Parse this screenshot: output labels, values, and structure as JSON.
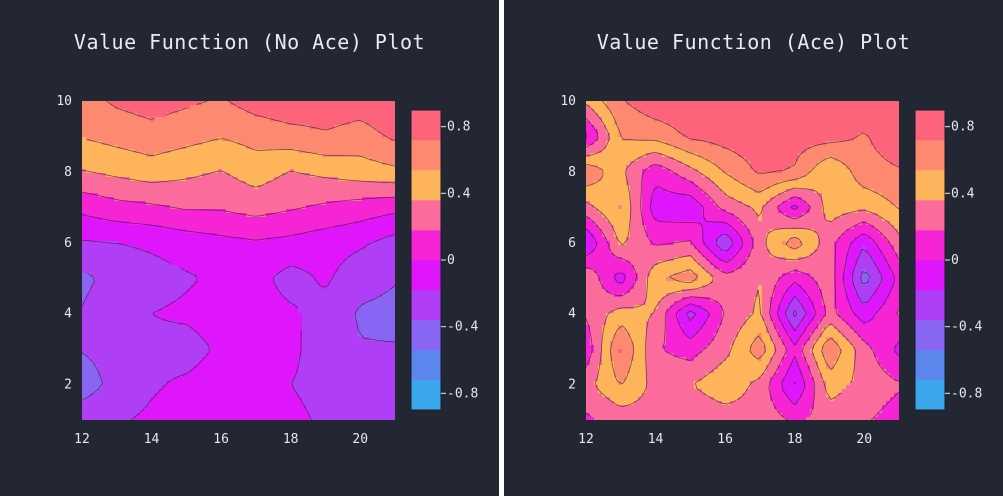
{
  "colors": {
    "background": "#222733",
    "colorscale": [
      "#3aa6ec",
      "#5b86ee",
      "#8866f3",
      "#b03ef7",
      "#df16fb",
      "#f624d5",
      "#fb6b9b",
      "#fdb45a",
      "#fd8a70",
      "#fd637b"
    ]
  },
  "chart_data": [
    {
      "type": "contour",
      "title": "Value Function (No Ace) Plot",
      "x_ticks": [
        "12",
        "14",
        "16",
        "18",
        "20"
      ],
      "y_ticks": [
        "2",
        "4",
        "6",
        "8",
        "10"
      ],
      "colorbar_ticks": [
        "0.8",
        "0.4",
        "0",
        "-0.4",
        "-0.8"
      ],
      "xlim": [
        12,
        21
      ],
      "ylim": [
        1,
        10
      ],
      "zlim": [
        -0.9,
        0.9
      ],
      "x": [
        12,
        13,
        14,
        15,
        16,
        17,
        18,
        19,
        20,
        21
      ],
      "y": [
        1,
        2,
        3,
        4,
        5,
        6,
        7,
        8,
        9,
        10
      ],
      "z": [
        [
          -0.25,
          -0.2,
          -0.15,
          -0.12,
          -0.08,
          -0.1,
          -0.15,
          -0.2,
          -0.22,
          -0.25
        ],
        [
          -0.45,
          -0.3,
          -0.2,
          -0.15,
          -0.1,
          -0.12,
          -0.18,
          -0.22,
          -0.28,
          -0.3
        ],
        [
          -0.35,
          -0.3,
          -0.22,
          -0.25,
          -0.15,
          -0.1,
          -0.15,
          -0.25,
          -0.35,
          -0.35
        ],
        [
          -0.35,
          -0.25,
          -0.18,
          -0.15,
          -0.1,
          -0.1,
          -0.15,
          -0.25,
          -0.38,
          -0.4
        ],
        [
          -0.4,
          -0.3,
          -0.25,
          -0.2,
          -0.15,
          -0.12,
          -0.25,
          -0.15,
          -0.3,
          -0.35
        ],
        [
          -0.2,
          -0.18,
          -0.15,
          -0.1,
          -0.05,
          -0.02,
          -0.05,
          -0.1,
          -0.15,
          -0.25
        ],
        [
          0.05,
          0.12,
          0.15,
          0.2,
          0.2,
          0.25,
          0.2,
          0.15,
          0.1,
          0.05
        ],
        [
          0.35,
          0.4,
          0.45,
          0.4,
          0.35,
          0.45,
          0.35,
          0.4,
          0.45,
          0.5
        ],
        [
          0.55,
          0.6,
          0.65,
          0.6,
          0.55,
          0.6,
          0.65,
          0.7,
          0.65,
          0.75
        ],
        [
          0.65,
          0.75,
          0.8,
          0.75,
          0.7,
          0.8,
          0.85,
          0.82,
          0.8,
          0.85
        ]
      ]
    },
    {
      "type": "contour",
      "title": "Value Function (Ace) Plot",
      "x_ticks": [
        "12",
        "14",
        "16",
        "18",
        "20"
      ],
      "y_ticks": [
        "2",
        "4",
        "6",
        "8",
        "10"
      ],
      "colorbar_ticks": [
        "0.8",
        "0.4",
        "0",
        "-0.4",
        "-0.8"
      ],
      "xlim": [
        12,
        21
      ],
      "ylim": [
        1,
        10
      ],
      "zlim": [
        -0.9,
        0.9
      ],
      "x": [
        12,
        13,
        14,
        15,
        16,
        17,
        18,
        19,
        20,
        21
      ],
      "y": [
        1,
        2,
        3,
        4,
        5,
        6,
        7,
        8,
        9,
        10
      ],
      "z": [
        [
          0.15,
          0.25,
          0.3,
          0.2,
          0.25,
          0.3,
          0.15,
          0.25,
          0.2,
          0.1
        ],
        [
          0.3,
          0.55,
          0.3,
          0.35,
          0.5,
          0.3,
          -0.2,
          0.45,
          0.3,
          0.2
        ],
        [
          0.05,
          0.75,
          0.2,
          0.1,
          0.3,
          0.65,
          0.05,
          0.7,
          0.25,
          -0.05
        ],
        [
          0.2,
          0.45,
          0.35,
          -0.25,
          0.2,
          0.4,
          -0.4,
          0.25,
          -0.1,
          0.2
        ],
        [
          0.35,
          -0.1,
          0.5,
          0.65,
          0.25,
          0.35,
          0.05,
          0.3,
          -0.45,
          0.05
        ],
        [
          -0.2,
          0.4,
          0.15,
          0.2,
          -0.35,
          0.3,
          0.65,
          0.25,
          -0.15,
          0.3
        ],
        [
          0.3,
          0.55,
          -0.1,
          -0.15,
          0.25,
          0.4,
          -0.05,
          0.45,
          0.4,
          0.55
        ],
        [
          0.7,
          0.4,
          0.05,
          0.3,
          0.55,
          0.75,
          0.7,
          0.35,
          0.65,
          0.7
        ],
        [
          -0.05,
          0.55,
          0.6,
          0.75,
          0.8,
          0.85,
          0.8,
          0.8,
          0.7,
          0.85
        ],
        [
          0.4,
          0.7,
          0.85,
          0.85,
          0.85,
          0.9,
          0.85,
          0.85,
          0.85,
          0.85
        ]
      ]
    }
  ]
}
